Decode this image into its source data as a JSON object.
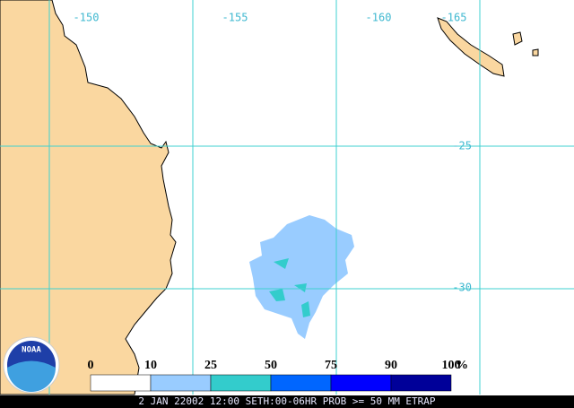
{
  "map": {
    "longitude_labels": [
      "-150",
      "-155",
      "-160",
      "-165"
    ],
    "latitude_labels": [
      "-25",
      "-30"
    ],
    "legend": {
      "labels": [
        "0",
        "10",
        "25",
        "50",
        "75",
        "90",
        "100"
      ],
      "unit": "%"
    },
    "logo": "NOAA",
    "footer": "2 JAN 22002 12:00 SETH:00-06HR PROB >= 50 MM ETRAP"
  }
}
